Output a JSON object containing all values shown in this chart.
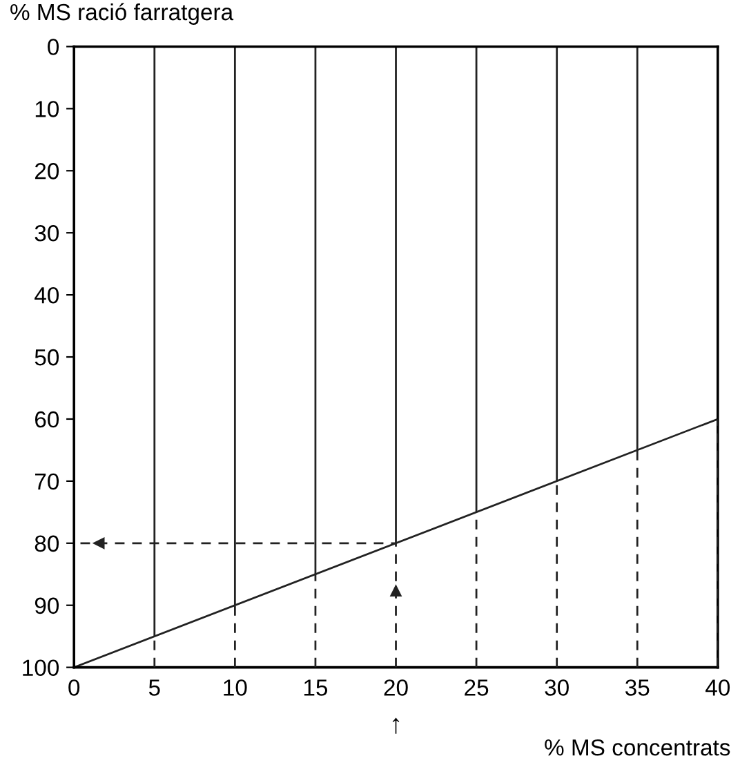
{
  "chart_data": {
    "type": "line",
    "xlabel": "% MS concentrats",
    "ylabel": "% MS ració farratgera",
    "x": [
      0,
      40
    ],
    "series": [
      {
        "color": "#222222",
        "values": [
          100,
          60
        ]
      }
    ],
    "xlim": [
      0,
      40
    ],
    "ylim": [
      100,
      0
    ],
    "xticks": [
      0,
      5,
      10,
      15,
      20,
      25,
      30,
      35,
      40
    ],
    "yticks": [
      0,
      10,
      20,
      30,
      40,
      50,
      60,
      70,
      80,
      90,
      100
    ],
    "grid": "x",
    "marker": "none",
    "line_style": "solid",
    "ref_lines": [
      {
        "axis": "y",
        "value": 80,
        "line_style": "dashed",
        "color": "#222222"
      }
    ],
    "annotations": [
      "↑"
    ]
  }
}
